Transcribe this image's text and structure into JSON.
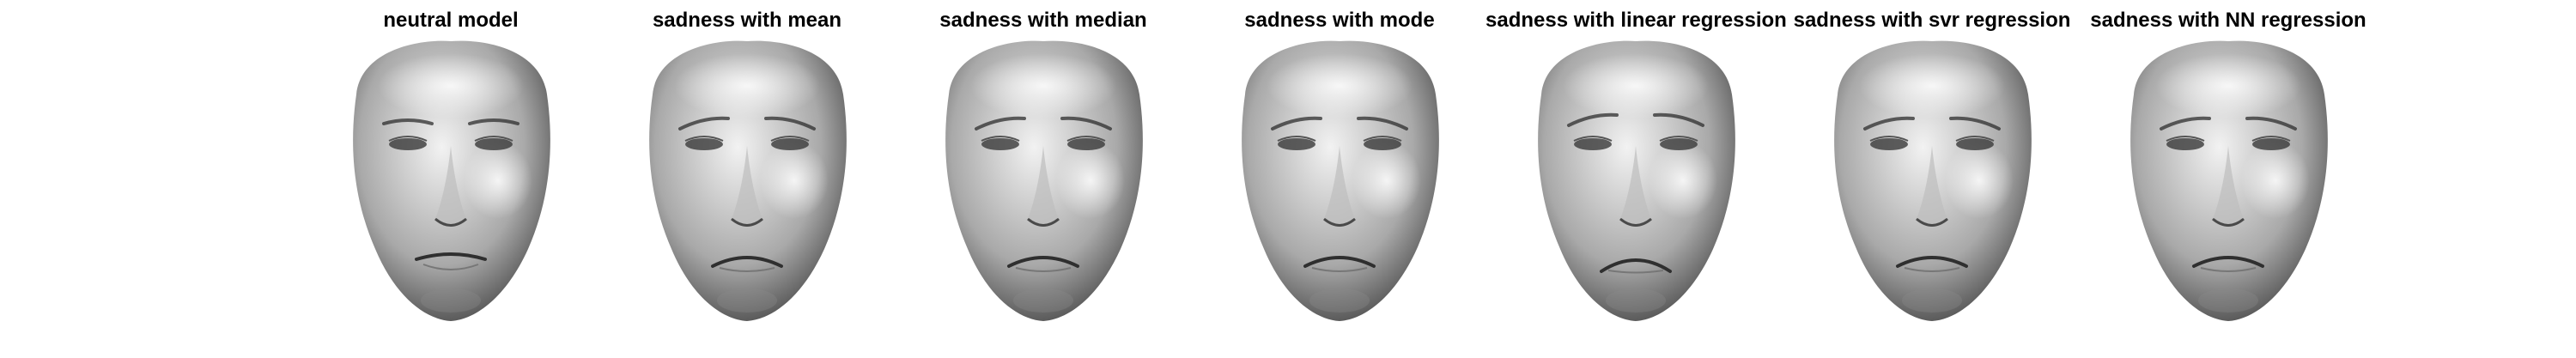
{
  "figure": {
    "panels": [
      {
        "title": "neutral model",
        "expression": "neutral"
      },
      {
        "title": "sadness with mean",
        "expression": "sadness"
      },
      {
        "title": "sadness with median",
        "expression": "sadness"
      },
      {
        "title": "sadness with mode",
        "expression": "sadness"
      },
      {
        "title": "sadness with linear regression",
        "expression": "sadness-strong"
      },
      {
        "title": "sadness with svr regression",
        "expression": "sadness"
      },
      {
        "title": "sadness with NN regression",
        "expression": "sadness"
      }
    ]
  },
  "colors": {
    "background": "#ffffff",
    "title_text": "#000000",
    "face_light": "#f2f2f2",
    "face_mid": "#a9a9a9",
    "face_dark": "#3c3c3c"
  }
}
